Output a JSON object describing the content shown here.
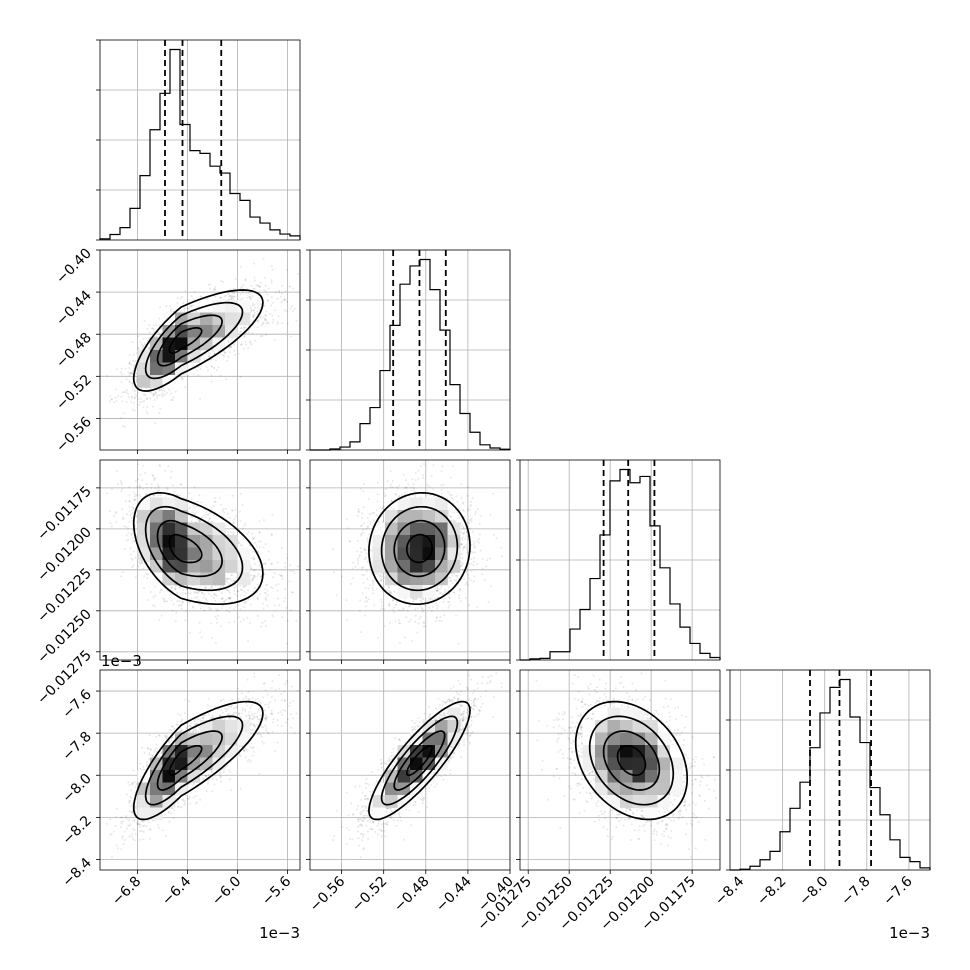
{
  "chart_data": {
    "type": "corner",
    "n_params": 4,
    "grid": true,
    "params": [
      {
        "center": -6.45,
        "spread": 0.19,
        "skew": 0.9,
        "range": [
          -7.1,
          -5.5
        ],
        "quantiles": [
          -6.58,
          -6.44,
          -6.13
        ],
        "ticks": [
          -6.8,
          -6.4,
          -6.0,
          -5.6
        ],
        "tick_labels": [
          "−6.8",
          "−6.4",
          "−6.0",
          "−5.6"
        ],
        "offset_label": "1e−3"
      },
      {
        "center": -0.486,
        "spread": 0.024,
        "skew": 0,
        "range": [
          -0.59,
          -0.4
        ],
        "quantiles": [
          -0.511,
          -0.486,
          -0.461
        ],
        "ticks": [
          -0.56,
          -0.52,
          -0.48,
          -0.44,
          -0.4
        ],
        "tick_labels": [
          "−0.56",
          "−0.52",
          "−0.48",
          "−0.44",
          "−0.40"
        ],
        "offset_label": ""
      },
      {
        "center": -0.01212,
        "spread": 0.00017,
        "skew": 0,
        "range": [
          -0.0128,
          -0.01158
        ],
        "quantiles": [
          -0.01229,
          -0.01214,
          -0.01198
        ],
        "ticks": [
          -0.01275,
          -0.0125,
          -0.01225,
          -0.012,
          -0.01175
        ],
        "tick_labels": [
          "−0.01275",
          "−0.01250",
          "−0.01225",
          "−0.01200",
          "−0.01175"
        ],
        "offset_label": ""
      },
      {
        "center": -7.93,
        "spread": 0.14,
        "skew": 0,
        "range": [
          -8.45,
          -7.5
        ],
        "quantiles": [
          -8.07,
          -7.93,
          -7.78
        ],
        "ticks": [
          -8.4,
          -8.2,
          -8.0,
          -7.8,
          -7.6
        ],
        "tick_labels": [
          "−8.4",
          "−8.2",
          "−8.0",
          "−7.8",
          "−7.6"
        ],
        "offset_label": "1e−3"
      }
    ],
    "correlations": [
      [
        1,
        0.75,
        -0.45,
        0.8
      ],
      [
        0.75,
        1,
        0.05,
        0.85
      ],
      [
        -0.45,
        0.05,
        1,
        -0.3
      ],
      [
        0.8,
        0.85,
        -0.3,
        1
      ]
    ],
    "contour_levels": [
      0.5,
      1.0,
      1.5,
      2.0
    ]
  }
}
